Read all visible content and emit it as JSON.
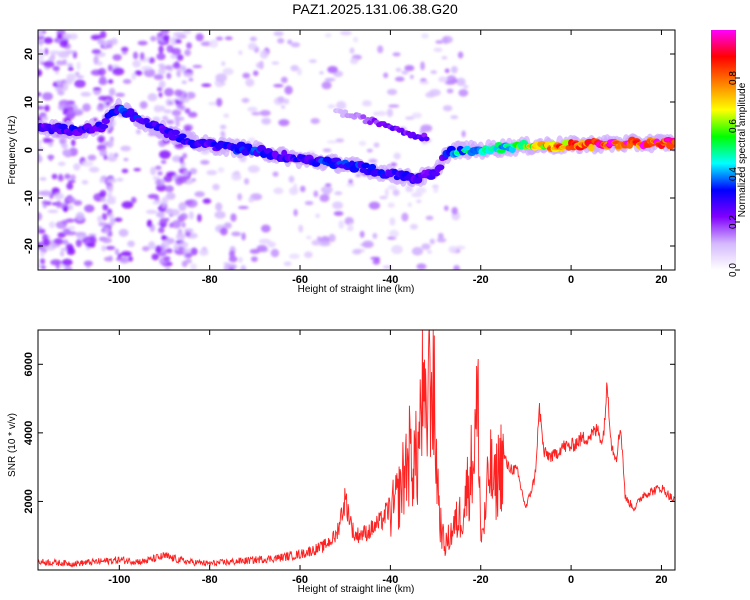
{
  "title": "PAZ1.2025.131.06.38.G20",
  "chart_data": [
    {
      "type": "heatmap",
      "name": "spectrogram",
      "xlabel": "Height of straight line (km)",
      "ylabel": "Frequency (Hz)",
      "xlim": [
        -118,
        23
      ],
      "ylim": [
        -25,
        25
      ],
      "xticks": [
        -100,
        -80,
        -60,
        -40,
        -20,
        0,
        20
      ],
      "xtick_labels": [
        "-100",
        "-80",
        "-60",
        "-40",
        "-20",
        "0",
        "20"
      ],
      "yticks": [
        -20,
        -10,
        0,
        10,
        20
      ],
      "ytick_labels": [
        "-20",
        "-10",
        "0",
        "10",
        "20"
      ],
      "colorbar": {
        "label": "Normalized spectral amplitude",
        "range": [
          0,
          1
        ],
        "ticks": [
          0.0,
          0.2,
          0.4,
          0.6,
          0.8
        ],
        "tick_labels": [
          "0.0",
          "0.2",
          "0.4",
          "0.6",
          "0.8"
        ],
        "colors": [
          "#ffffff",
          "#d4b8ff",
          "#8000ff",
          "#0000ff",
          "#00ffff",
          "#00ff00",
          "#ffff00",
          "#ff8000",
          "#ff0000",
          "#ff00ff"
        ]
      },
      "ridge": {
        "x": [
          -118,
          -110,
          -104,
          -100,
          -95,
          -90,
          -85,
          -80,
          -75,
          -70,
          -65,
          -60,
          -55,
          -50,
          -45,
          -40,
          -35,
          -30,
          -28,
          -25,
          -20,
          -15,
          -10,
          -5,
          0,
          5,
          10,
          15,
          20,
          23
        ],
        "freq": [
          5,
          4,
          5,
          9,
          6,
          4,
          2,
          1,
          0.5,
          0,
          -1,
          -2,
          -2.5,
          -3,
          -4,
          -5,
          -6,
          -5,
          -1,
          0,
          0,
          0.5,
          0.8,
          1,
          1,
          1.2,
          1.3,
          1.4,
          1.5,
          1.5
        ],
        "amplitude": [
          0.25,
          0.3,
          0.3,
          0.35,
          0.32,
          0.3,
          0.3,
          0.3,
          0.35,
          0.35,
          0.3,
          0.3,
          0.35,
          0.35,
          0.35,
          0.3,
          0.3,
          0.25,
          0.3,
          0.45,
          0.45,
          0.5,
          0.6,
          0.75,
          0.85,
          0.9,
          0.95,
          0.95,
          0.95,
          0.95
        ]
      },
      "upper_branch": {
        "x": [
          -52,
          -48,
          -44,
          -40,
          -36,
          -32
        ],
        "freq": [
          8,
          7,
          6,
          5,
          3.5,
          2.5
        ],
        "amplitude": [
          0.1,
          0.15,
          0.2,
          0.25,
          0.25,
          0.25
        ]
      }
    },
    {
      "type": "line",
      "name": "snr",
      "xlabel": "Height of straight line (km)",
      "ylabel": "SNR (10 * v/v)",
      "xlim": [
        -118,
        23
      ],
      "ylim": [
        0,
        7000
      ],
      "xticks": [
        -100,
        -80,
        -60,
        -40,
        -20,
        0,
        20
      ],
      "xtick_labels": [
        "-100",
        "-80",
        "-60",
        "-40",
        "-20",
        "0",
        "20"
      ],
      "yticks": [
        2000,
        4000,
        6000
      ],
      "ytick_labels": [
        "2000",
        "4000",
        "6000"
      ],
      "color": "#ff2020",
      "series": [
        {
          "name": "SNR",
          "x": [
            -118,
            -110,
            -100,
            -95,
            -90,
            -85,
            -80,
            -75,
            -70,
            -65,
            -60,
            -55,
            -52,
            -50,
            -48,
            -45,
            -42,
            -40,
            -38,
            -36,
            -34,
            -33,
            -32,
            -31.5,
            -31,
            -30.5,
            -30,
            -29,
            -28,
            -26,
            -24,
            -22,
            -20.5,
            -20,
            -19,
            -18,
            -17,
            -16,
            -15,
            -14,
            -12,
            -10,
            -8,
            -7,
            -6,
            -4,
            -2,
            0,
            2,
            4,
            6,
            7,
            8,
            9,
            10,
            11,
            12,
            14,
            16,
            18,
            20,
            23
          ],
          "y": [
            200,
            150,
            250,
            200,
            350,
            200,
            150,
            200,
            250,
            300,
            400,
            600,
            900,
            1900,
            900,
            1000,
            1300,
            1700,
            2300,
            3500,
            3300,
            5300,
            4000,
            7000,
            5700,
            5800,
            3800,
            1500,
            700,
            1300,
            1800,
            3200,
            5000,
            900,
            1600,
            3200,
            2400,
            3100,
            3400,
            3000,
            2900,
            1800,
            2700,
            4700,
            3400,
            3300,
            3600,
            3600,
            3800,
            3900,
            4100,
            3700,
            5400,
            3600,
            3300,
            4200,
            2100,
            1800,
            2200,
            2300,
            2400,
            2000
          ]
        }
      ]
    }
  ]
}
